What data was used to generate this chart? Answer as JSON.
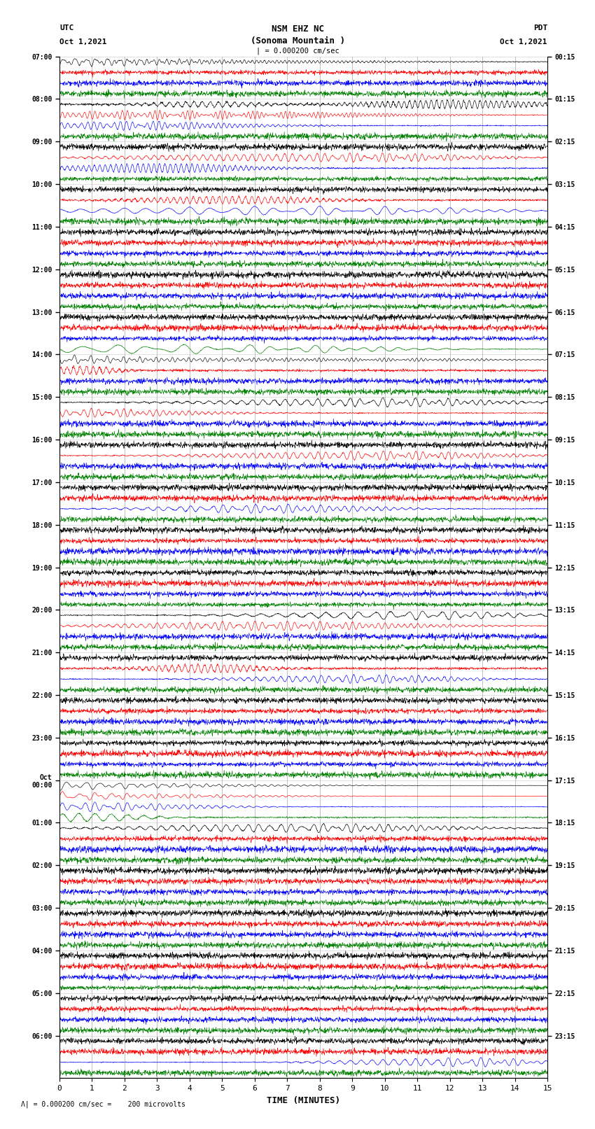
{
  "title_line1": "NSM EHZ NC",
  "title_line2": "(Sonoma Mountain )",
  "scale_text": "1 = 0.000200 cm/sec",
  "left_header_line1": "UTC",
  "left_header_line2": "Oct 1,2021",
  "right_header_line1": "PDT",
  "right_header_line2": "Oct 1,2021",
  "bottom_note": "1 = 0.000200 cm/sec =    200 microvolts",
  "xlabel": "TIME (MINUTES)",
  "left_times": [
    "07:00",
    "08:00",
    "09:00",
    "10:00",
    "11:00",
    "12:00",
    "13:00",
    "14:00",
    "15:00",
    "16:00",
    "17:00",
    "18:00",
    "19:00",
    "20:00",
    "21:00",
    "22:00",
    "23:00",
    "Oct\n00:00",
    "01:00",
    "02:00",
    "03:00",
    "04:00",
    "05:00",
    "06:00"
  ],
  "right_times": [
    "00:15",
    "01:15",
    "02:15",
    "03:15",
    "04:15",
    "05:15",
    "06:15",
    "07:15",
    "08:15",
    "09:15",
    "10:15",
    "11:15",
    "12:15",
    "13:15",
    "14:15",
    "15:15",
    "16:15",
    "17:15",
    "18:15",
    "19:15",
    "20:15",
    "21:15",
    "22:15",
    "23:15"
  ],
  "n_rows": 24,
  "traces_per_row": 4,
  "colors": [
    "black",
    "red",
    "blue",
    "green"
  ],
  "fig_width": 8.5,
  "fig_height": 16.13,
  "xlim": [
    0,
    15
  ],
  "xticks": [
    0,
    1,
    2,
    3,
    4,
    5,
    6,
    7,
    8,
    9,
    10,
    11,
    12,
    13,
    14,
    15
  ],
  "vgrid_color": "#aaaaaa",
  "hgrid_color": "#cccccc"
}
